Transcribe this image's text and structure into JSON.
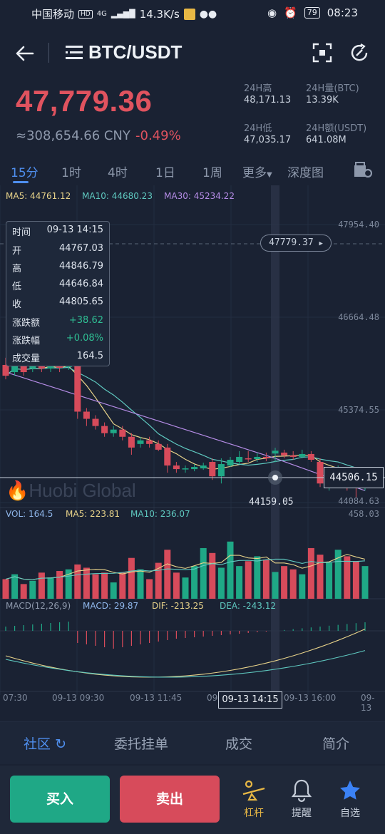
{
  "status": {
    "carrier": "中国移动",
    "hd": "HD",
    "net": "4G",
    "speed": "14.3K/s",
    "battery": "79",
    "time": "08:23"
  },
  "header": {
    "pair": "BTC/USDT"
  },
  "ticker": {
    "price": "47,779.36",
    "cny": "≈308,654.66 CNY",
    "change": "-0.49%",
    "high_label": "24H高",
    "high": "48,171.13",
    "vol_btc_label": "24H量(BTC)",
    "vol_btc": "13.39K",
    "low_label": "24H低",
    "low": "47,035.17",
    "vol_usdt_label": "24H额(USDT)",
    "vol_usdt": "641.08M"
  },
  "tabs": [
    "15分",
    "1时",
    "4时",
    "1日",
    "1周",
    "更多",
    "深度图"
  ],
  "chart": {
    "ma5": "MA5: 44761.12",
    "ma10": "MA10: 44680.23",
    "ma30": "MA30: 45234.22",
    "price_axis": [
      "47954.40",
      "46664.48",
      "45374.55",
      "44084.63"
    ],
    "current_price_tag": "47779.37",
    "crosshair_price_tag": "44506.15",
    "low_marker": "44159.05",
    "watermark": "Huobi Global",
    "vol_label": "VOL: 164.5",
    "vol_ma5": "MA5: 223.81",
    "vol_ma10": "MA10: 236.07",
    "vol_axis_top": "458.03",
    "macd_label": "MACD(12,26,9)",
    "macd_val": "MACD: 29.87",
    "dif_val": "DIF: -213.25",
    "dea_val": "DEA: -243.12",
    "time_axis": [
      "07:30",
      "09-13 09:30",
      "09-13 11:45",
      "09-",
      "09-13 16:00",
      "09-13"
    ],
    "crosshair_time": "09-13 14:15",
    "ohlc": {
      "time_label": "时间",
      "time": "09-13 14:15",
      "open_label": "开",
      "open": "44767.03",
      "high_label": "高",
      "high": "44846.79",
      "low_label": "低",
      "low": "44646.84",
      "close_label": "收",
      "close": "44805.65",
      "chg_label": "涨跌额",
      "chg": "+38.62",
      "pct_label": "涨跌幅",
      "pct": "+0.08%",
      "vol_label": "成交量",
      "vol": "164.5"
    }
  },
  "chart_data": {
    "type": "candlestick",
    "ylim": [
      44084.63,
      47954.4
    ],
    "candles": [
      {
        "o": 46000,
        "c": 45850,
        "h": 46100,
        "l": 45800
      },
      {
        "o": 45900,
        "c": 46050,
        "h": 46100,
        "l": 45850
      },
      {
        "o": 46020,
        "c": 45900,
        "h": 46080,
        "l": 45850
      },
      {
        "o": 45950,
        "c": 46000,
        "h": 46050,
        "l": 45900
      },
      {
        "o": 46000,
        "c": 45950,
        "h": 46050,
        "l": 45900
      },
      {
        "o": 45950,
        "c": 46000,
        "h": 46100,
        "l": 45900
      },
      {
        "o": 46000,
        "c": 45960,
        "h": 46050,
        "l": 45900
      },
      {
        "o": 45970,
        "c": 46010,
        "h": 46060,
        "l": 45930
      },
      {
        "o": 46000,
        "c": 45350,
        "h": 46020,
        "l": 45250
      },
      {
        "o": 45350,
        "c": 45250,
        "h": 45400,
        "l": 45150
      },
      {
        "o": 45250,
        "c": 45150,
        "h": 45300,
        "l": 45100
      },
      {
        "o": 45150,
        "c": 45050,
        "h": 45200,
        "l": 45000
      },
      {
        "o": 45050,
        "c": 45100,
        "h": 45150,
        "l": 45000
      },
      {
        "o": 45100,
        "c": 45000,
        "h": 45150,
        "l": 44950
      },
      {
        "o": 45000,
        "c": 44850,
        "h": 45050,
        "l": 44750
      },
      {
        "o": 44900,
        "c": 44950,
        "h": 45000,
        "l": 44850
      },
      {
        "o": 44950,
        "c": 44900,
        "h": 45000,
        "l": 44850
      },
      {
        "o": 44900,
        "c": 44820,
        "h": 44950,
        "l": 44800
      },
      {
        "o": 44850,
        "c": 44600,
        "h": 44900,
        "l": 44500
      },
      {
        "o": 44600,
        "c": 44550,
        "h": 44650,
        "l": 44500
      },
      {
        "o": 44550,
        "c": 44560,
        "h": 44600,
        "l": 44500
      },
      {
        "o": 44550,
        "c": 44580,
        "h": 44620,
        "l": 44520
      },
      {
        "o": 44560,
        "c": 44600,
        "h": 44640,
        "l": 44540
      },
      {
        "o": 44650,
        "c": 44450,
        "h": 44700,
        "l": 44400
      },
      {
        "o": 44450,
        "c": 44620,
        "h": 44700,
        "l": 44350
      },
      {
        "o": 44600,
        "c": 44680,
        "h": 44720,
        "l": 44580
      },
      {
        "o": 44650,
        "c": 44720,
        "h": 44800,
        "l": 44620
      },
      {
        "o": 44700,
        "c": 44690,
        "h": 44800,
        "l": 44650
      },
      {
        "o": 44690,
        "c": 44720,
        "h": 44780,
        "l": 44650
      },
      {
        "o": 44720,
        "c": 44700,
        "h": 44780,
        "l": 44660
      },
      {
        "o": 44767,
        "c": 44806,
        "h": 44847,
        "l": 44647
      },
      {
        "o": 44780,
        "c": 44740,
        "h": 44820,
        "l": 44700
      },
      {
        "o": 44740,
        "c": 44720,
        "h": 44800,
        "l": 44680
      },
      {
        "o": 44720,
        "c": 44760,
        "h": 44820,
        "l": 44700
      },
      {
        "o": 44760,
        "c": 44680,
        "h": 44800,
        "l": 44650
      },
      {
        "o": 44650,
        "c": 44350,
        "h": 44700,
        "l": 44300
      },
      {
        "o": 44400,
        "c": 44500,
        "h": 44550,
        "l": 44250
      },
      {
        "o": 44450,
        "c": 44520,
        "h": 44600,
        "l": 44400
      },
      {
        "o": 44500,
        "c": 44300,
        "h": 44550,
        "l": 44250
      },
      {
        "o": 44350,
        "c": 44300,
        "h": 44400,
        "l": 44159
      },
      {
        "o": 44300,
        "c": 44350,
        "h": 44400,
        "l": 44250
      }
    ],
    "volume_ylim": [
      0,
      458.03
    ],
    "volumes": [
      120,
      150,
      90,
      110,
      160,
      130,
      170,
      180,
      210,
      190,
      150,
      160,
      100,
      160,
      250,
      180,
      120,
      220,
      300,
      160,
      130,
      200,
      310,
      280,
      190,
      350,
      200,
      230,
      260,
      240,
      164,
      200,
      180,
      150,
      310,
      270,
      220,
      300,
      260,
      230,
      200
    ]
  }
}
